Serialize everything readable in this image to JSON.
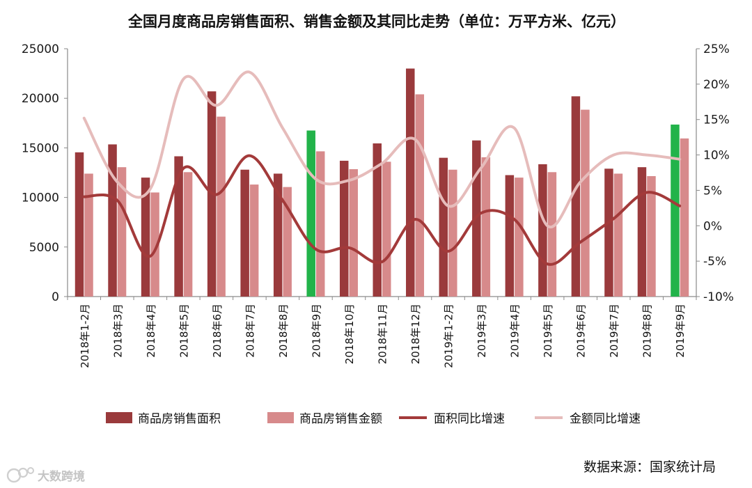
{
  "chart_data": {
    "type": "bar",
    "title": "全国月度商品房销售面积、销售金额及其同比走势（单位：万平方米、亿元）",
    "categories": [
      "2018年1-2月",
      "2018年3月",
      "2018年4月",
      "2018年5月",
      "2018年6月",
      "2018年7月",
      "2018年8月",
      "2018年9月",
      "2018年10月",
      "2018年11月",
      "2018年12月",
      "2019年1-2月",
      "2019年3月",
      "2019年4月",
      "2019年5月",
      "2019年6月",
      "2019年7月",
      "2019年8月",
      "2019年9月"
    ],
    "highlight_categories": [
      "2018年9月",
      "2019年9月"
    ],
    "highlight_color": "#22b34a",
    "series": [
      {
        "name": "商品房销售面积",
        "type": "bar",
        "axis": "left",
        "color": "#9a3a3c",
        "values": [
          14550,
          15350,
          12000,
          14150,
          20700,
          12800,
          12400,
          16750,
          13700,
          15450,
          23000,
          14000,
          15750,
          12250,
          13350,
          20200,
          12900,
          13050,
          17350
        ]
      },
      {
        "name": "商品房销售金额",
        "type": "bar",
        "axis": "left",
        "color": "#d78a8b",
        "values": [
          12400,
          13050,
          10500,
          12550,
          18150,
          11300,
          11050,
          14650,
          12850,
          13600,
          20400,
          12800,
          14050,
          12000,
          12550,
          18850,
          12400,
          12150,
          15950
        ]
      },
      {
        "name": "面积同比增速",
        "type": "line",
        "axis": "right",
        "color": "#a33a3a",
        "values": [
          4.1,
          3.6,
          -4.3,
          8.1,
          4.4,
          9.9,
          3.6,
          -3.3,
          -3.1,
          -5.1,
          0.9,
          -3.6,
          1.8,
          0.9,
          -5.4,
          -2.3,
          1.0,
          4.7,
          2.8
        ]
      },
      {
        "name": "金额同比增速",
        "type": "line",
        "axis": "right",
        "color": "#e6bcbb",
        "values": [
          15.2,
          6.2,
          5.2,
          20.7,
          17.0,
          21.7,
          13.8,
          6.6,
          6.4,
          8.8,
          12.2,
          2.8,
          8.2,
          13.8,
          0.0,
          6.2,
          10.0,
          10.0,
          9.4
        ]
      }
    ],
    "left_axis": {
      "ylim": [
        0,
        25000
      ],
      "ticks": [
        "0",
        "5000",
        "10000",
        "15000",
        "20000",
        "25000"
      ]
    },
    "right_axis": {
      "ylim": [
        -10,
        25
      ],
      "ticks": [
        "-10%",
        "-5%",
        "0%",
        "5%",
        "10%",
        "15%",
        "20%",
        "25%"
      ]
    },
    "legend_position": "bottom",
    "grid": false
  },
  "source_text": "数据来源：国家统计局",
  "watermark_text": "大数跨境"
}
